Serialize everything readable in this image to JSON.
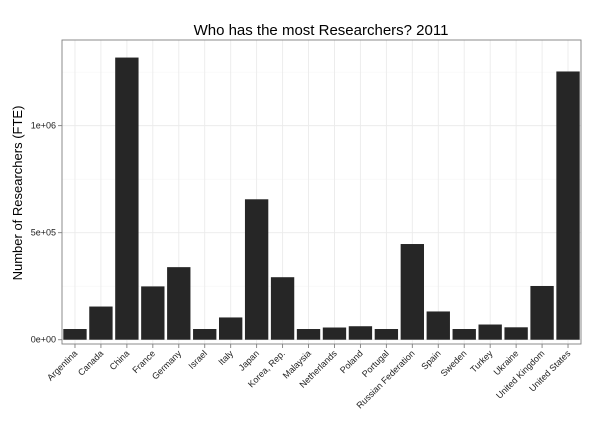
{
  "chart_data": {
    "type": "bar",
    "title": "Who has the most Researchers? 2011",
    "xlabel": "",
    "ylabel": "Number of Researchers (FTE)",
    "categories": [
      "Argentina",
      "Canada",
      "China",
      "France",
      "Germany",
      "Israel",
      "Italy",
      "Japan",
      "Korea, Rep.",
      "Malaysia",
      "Netherlands",
      "Poland",
      "Portugal",
      "Russian Federation",
      "Spain",
      "Sweden",
      "Turkey",
      "Ukraine",
      "United Kingdom",
      "United States"
    ],
    "values": [
      50000,
      155000,
      1318000,
      249000,
      339000,
      50000,
      104000,
      656000,
      292000,
      50000,
      57000,
      63000,
      50000,
      447000,
      132000,
      50000,
      71000,
      58000,
      251000,
      1253000
    ],
    "ylim": [
      -20000,
      1400000
    ],
    "yticks": [
      0,
      500000,
      1000000
    ],
    "ytick_labels": [
      "0e+00",
      "5e+05",
      "1e+06"
    ],
    "grid": true,
    "bar_color": "#262626",
    "grid_color": "#ebebeb"
  }
}
